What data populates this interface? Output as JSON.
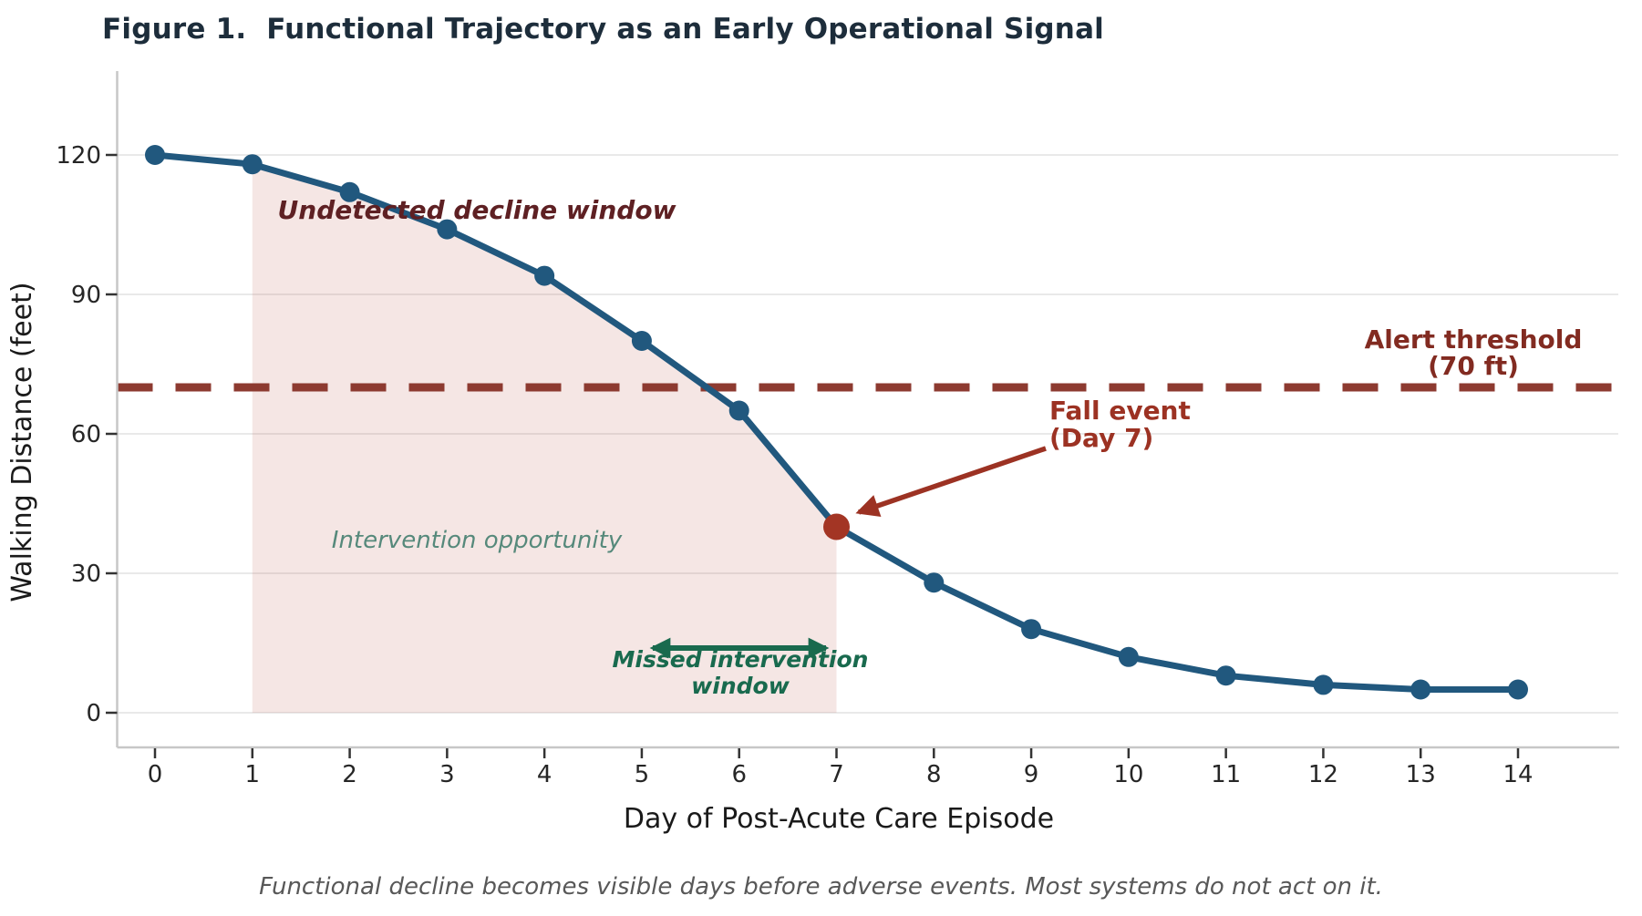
{
  "title": "Figure 1.  Functional Trajectory as an Early Operational Signal",
  "caption": "Functional decline becomes visible days before adverse events. Most systems do not act on it.",
  "annotations": {
    "undetected": "Undetected decline window",
    "intervention": "Intervention opportunity",
    "missed_line1": "Missed intervention",
    "missed_line2": "window",
    "fall_line1": "Fall event",
    "fall_line2": "(Day 7)",
    "alert_line1": "Alert threshold",
    "alert_line2": "(70 ft)"
  },
  "colors": {
    "line": "#21587e",
    "marker": "#21587e",
    "fall_marker": "#a33524",
    "threshold_dash": "#8d3a30",
    "region_fill": "rgba(198,106,92,0.17)",
    "grid": "#e9e9e9",
    "spine": "#c7c7c7",
    "tick": "#333333",
    "green_arrow": "#196a4e",
    "fall_arrow": "#9c3223",
    "title_text": "#1d2d3b"
  },
  "chart_data": {
    "type": "line",
    "title": "Figure 1.  Functional Trajectory as an Early Operational Signal",
    "xlabel": "Day of Post-Acute Care Episode",
    "ylabel": "Walking Distance (feet)",
    "x": [
      0,
      1,
      2,
      3,
      4,
      5,
      6,
      7,
      8,
      9,
      10,
      11,
      12,
      13,
      14
    ],
    "series": [
      {
        "name": "walking-distance-feet",
        "values": [
          120,
          118,
          112,
          104,
          94,
          80,
          65,
          40,
          28,
          18,
          12,
          8,
          6,
          5,
          5
        ]
      }
    ],
    "xticks": [
      0,
      1,
      2,
      3,
      4,
      5,
      6,
      7,
      8,
      9,
      10,
      11,
      12,
      13,
      14
    ],
    "yticks": [
      0,
      30,
      60,
      90,
      120
    ],
    "xlim": [
      -0.4,
      14.6
    ],
    "ylim": [
      -7.5,
      138
    ],
    "grid": "horizontal-only",
    "legend": "none",
    "threshold": {
      "value": 70,
      "label": "Alert threshold (70 ft)",
      "style": "dashed"
    },
    "shaded_region": {
      "from_day": 1,
      "to_day": 7,
      "label": "Intervention opportunity"
    },
    "fall_event": {
      "day": 7,
      "value": 40,
      "label": "Fall event (Day 7)"
    },
    "missed_window": {
      "from_day": 5.1,
      "to_day": 6.9,
      "label": "Missed intervention window"
    }
  }
}
